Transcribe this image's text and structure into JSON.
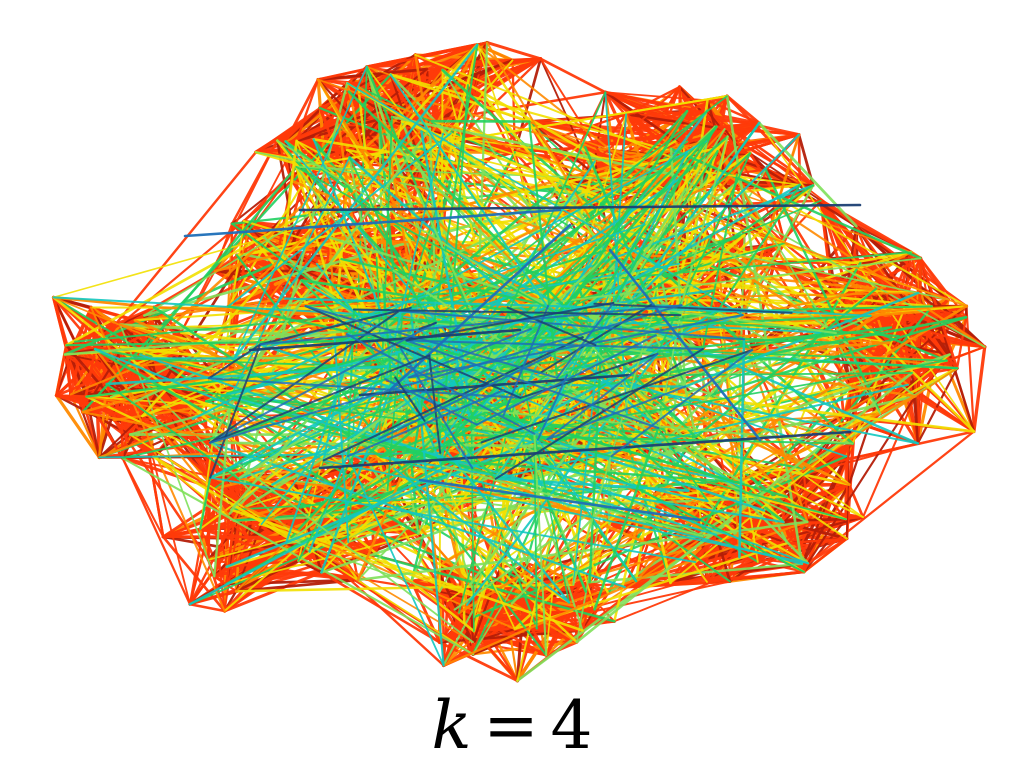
{
  "figure": {
    "caption": {
      "variable": "k",
      "operator": "=",
      "value": "4"
    },
    "edge_colors": {
      "dominant": "#ff3a0a",
      "dark_red": "#b41e08",
      "orange": "#ff8a00",
      "yellow": "#f2e000",
      "light_green": "#7fe05a",
      "green": "#20d060",
      "cyan": "#12c8c0",
      "blue": "#1e6fb8",
      "dark_blue": "#1b3f73"
    }
  }
}
